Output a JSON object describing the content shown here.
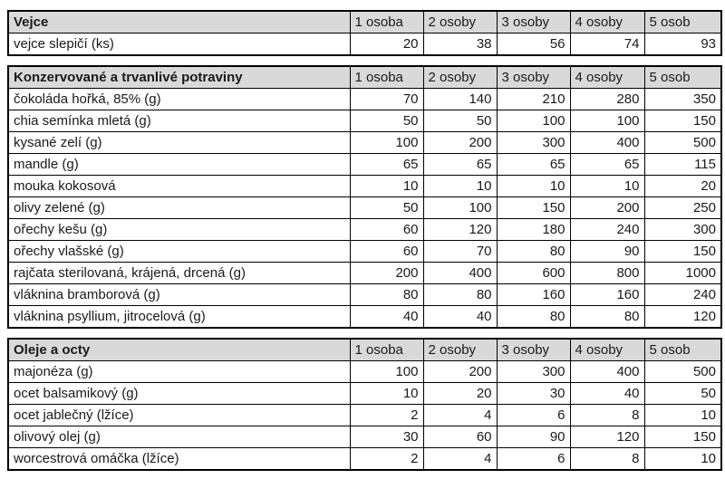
{
  "columns": [
    "1 osoba",
    "2 osoby",
    "3 osoby",
    "4 osoby",
    "5 osob"
  ],
  "sections": [
    {
      "title": "Vejce",
      "rows": [
        {
          "label": "vejce slepičí (ks)",
          "values": [
            20,
            38,
            56,
            74,
            93
          ]
        }
      ]
    },
    {
      "title": "Konzervované a trvanlivé potraviny",
      "rows": [
        {
          "label": "čokoláda hořká, 85% (g)",
          "values": [
            70,
            140,
            210,
            280,
            350
          ]
        },
        {
          "label": "chia semínka mletá (g)",
          "values": [
            50,
            50,
            100,
            100,
            150
          ]
        },
        {
          "label": "kysané zelí (g)",
          "values": [
            100,
            200,
            300,
            400,
            500
          ]
        },
        {
          "label": "mandle (g)",
          "values": [
            65,
            65,
            65,
            65,
            115
          ]
        },
        {
          "label": "mouka kokosová",
          "values": [
            10,
            10,
            10,
            10,
            20
          ]
        },
        {
          "label": "olivy zelené (g)",
          "values": [
            50,
            100,
            150,
            200,
            250
          ]
        },
        {
          "label": "ořechy kešu (g)",
          "values": [
            60,
            120,
            180,
            240,
            300
          ]
        },
        {
          "label": "ořechy vlašské (g)",
          "values": [
            60,
            70,
            80,
            90,
            150
          ]
        },
        {
          "label": "rajčata sterilovaná, krájená, drcená (g)",
          "values": [
            200,
            400,
            600,
            800,
            1000
          ]
        },
        {
          "label": "vláknina bramborová (g)",
          "values": [
            80,
            80,
            160,
            160,
            240
          ]
        },
        {
          "label": "vláknina psyllium, jitrocelová (g)",
          "values": [
            40,
            40,
            80,
            80,
            120
          ]
        }
      ]
    },
    {
      "title": "Oleje a octy",
      "rows": [
        {
          "label": "majonéza (g)",
          "values": [
            100,
            200,
            300,
            400,
            500
          ]
        },
        {
          "label": "ocet balsamikový (g)",
          "values": [
            10,
            20,
            30,
            40,
            50
          ]
        },
        {
          "label": "ocet jablečný (lžíce)",
          "values": [
            2,
            4,
            6,
            8,
            10
          ]
        },
        {
          "label": "olivový olej (g)",
          "values": [
            30,
            60,
            90,
            120,
            150
          ]
        },
        {
          "label": "worcestrová omáčka (lžíce)",
          "values": [
            2,
            4,
            6,
            8,
            10
          ]
        }
      ]
    }
  ],
  "colors": {
    "header_bg": "#d9d9d9",
    "border": "#000000",
    "text": "#1a1a1a"
  }
}
